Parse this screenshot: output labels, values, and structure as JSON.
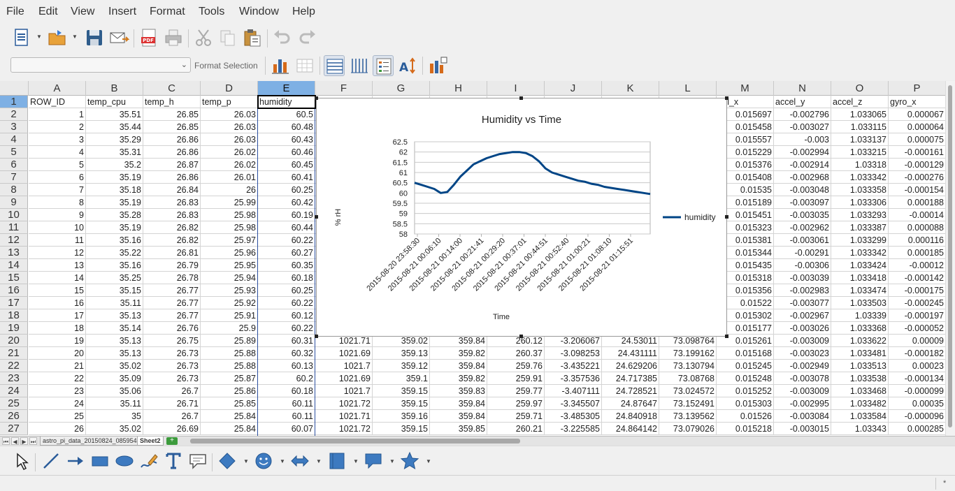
{
  "menu": [
    "File",
    "Edit",
    "View",
    "Insert",
    "Format",
    "Tools",
    "Window",
    "Help"
  ],
  "toolbar2": {
    "format_selection_label": "Format Selection"
  },
  "columns": [
    "A",
    "B",
    "C",
    "D",
    "E",
    "F",
    "G",
    "H",
    "I",
    "J",
    "K",
    "L",
    "M",
    "N",
    "O",
    "P"
  ],
  "selected_column": "E",
  "header_row": [
    "ROW_ID",
    "temp_cpu",
    "temp_h",
    "temp_p",
    "humidity",
    "",
    "",
    "",
    "",
    "",
    "",
    "",
    "cel_x",
    "accel_y",
    "accel_z",
    "gyro_x"
  ],
  "rows": [
    [
      "1",
      "35.51",
      "26.85",
      "26.03",
      "60.5",
      "",
      "",
      "",
      "",
      "",
      "",
      "",
      "0.015697",
      "-0.002796",
      "1.033065",
      "0.000067"
    ],
    [
      "2",
      "35.44",
      "26.85",
      "26.03",
      "60.48",
      "",
      "",
      "",
      "",
      "",
      "",
      "",
      "0.015458",
      "-0.003027",
      "1.033115",
      "0.000064"
    ],
    [
      "3",
      "35.29",
      "26.86",
      "26.03",
      "60.43",
      "",
      "",
      "",
      "",
      "",
      "",
      "",
      "0.015557",
      "-0.003",
      "1.033137",
      "0.000075"
    ],
    [
      "4",
      "35.31",
      "26.86",
      "26.02",
      "60.46",
      "",
      "",
      "",
      "",
      "",
      "",
      "",
      "0.015229",
      "-0.002994",
      "1.033215",
      "-0.000161"
    ],
    [
      "5",
      "35.2",
      "26.87",
      "26.02",
      "60.45",
      "",
      "",
      "",
      "",
      "",
      "",
      "",
      "0.015376",
      "-0.002914",
      "1.03318",
      "-0.000129"
    ],
    [
      "6",
      "35.19",
      "26.86",
      "26.01",
      "60.41",
      "",
      "",
      "",
      "",
      "",
      "",
      "",
      "0.015408",
      "-0.002968",
      "1.033342",
      "-0.000276"
    ],
    [
      "7",
      "35.18",
      "26.84",
      "26",
      "60.25",
      "",
      "",
      "",
      "",
      "",
      "",
      "",
      "0.01535",
      "-0.003048",
      "1.033358",
      "-0.000154"
    ],
    [
      "8",
      "35.19",
      "26.83",
      "25.99",
      "60.42",
      "",
      "",
      "",
      "",
      "",
      "",
      "",
      "0.015189",
      "-0.003097",
      "1.033306",
      "0.000188"
    ],
    [
      "9",
      "35.28",
      "26.83",
      "25.98",
      "60.19",
      "",
      "",
      "",
      "",
      "",
      "",
      "",
      "0.015451",
      "-0.003035",
      "1.033293",
      "-0.00014"
    ],
    [
      "10",
      "35.19",
      "26.82",
      "25.98",
      "60.44",
      "",
      "",
      "",
      "",
      "",
      "",
      "",
      "0.015323",
      "-0.002962",
      "1.033387",
      "0.000088"
    ],
    [
      "11",
      "35.16",
      "26.82",
      "25.97",
      "60.22",
      "",
      "",
      "",
      "",
      "",
      "",
      "",
      "0.015381",
      "-0.003061",
      "1.033299",
      "0.000116"
    ],
    [
      "12",
      "35.22",
      "26.81",
      "25.96",
      "60.27",
      "",
      "",
      "",
      "",
      "",
      "",
      "",
      "0.015344",
      "-0.00291",
      "1.033342",
      "0.000185"
    ],
    [
      "13",
      "35.16",
      "26.79",
      "25.95",
      "60.35",
      "",
      "",
      "",
      "",
      "",
      "",
      "",
      "0.015435",
      "-0.00306",
      "1.033424",
      "-0.00012"
    ],
    [
      "14",
      "35.25",
      "26.78",
      "25.94",
      "60.18",
      "",
      "",
      "",
      "",
      "",
      "",
      "",
      "0.015318",
      "-0.003039",
      "1.033418",
      "-0.000142"
    ],
    [
      "15",
      "35.15",
      "26.77",
      "25.93",
      "60.25",
      "",
      "",
      "",
      "",
      "",
      "",
      "",
      "0.015356",
      "-0.002983",
      "1.033474",
      "-0.000175"
    ],
    [
      "16",
      "35.11",
      "26.77",
      "25.92",
      "60.22",
      "",
      "",
      "",
      "",
      "",
      "",
      "",
      "0.01522",
      "-0.003077",
      "1.033503",
      "-0.000245"
    ],
    [
      "17",
      "35.13",
      "26.77",
      "25.91",
      "60.12",
      "",
      "",
      "",
      "",
      "",
      "",
      "",
      "0.015302",
      "-0.002967",
      "1.03339",
      "-0.000197"
    ],
    [
      "18",
      "35.14",
      "26.76",
      "25.9",
      "60.22",
      "",
      "",
      "",
      "",
      "",
      "",
      "",
      "0.015177",
      "-0.003026",
      "1.033368",
      "-0.000052"
    ],
    [
      "19",
      "35.13",
      "26.75",
      "25.89",
      "60.31",
      "1021.71",
      "359.02",
      "359.84",
      "260.12",
      "-3.206067",
      "24.53011",
      "73.098764",
      "0.015261",
      "-0.003009",
      "1.033622",
      "0.00009"
    ],
    [
      "20",
      "35.13",
      "26.73",
      "25.88",
      "60.32",
      "1021.69",
      "359.13",
      "359.82",
      "260.37",
      "-3.098253",
      "24.431111",
      "73.199162",
      "0.015168",
      "-0.003023",
      "1.033481",
      "-0.000182"
    ],
    [
      "21",
      "35.02",
      "26.73",
      "25.88",
      "60.13",
      "1021.7",
      "359.12",
      "359.84",
      "259.76",
      "-3.435221",
      "24.629206",
      "73.130794",
      "0.015245",
      "-0.002949",
      "1.033513",
      "0.00023"
    ],
    [
      "22",
      "35.09",
      "26.73",
      "25.87",
      "60.2",
      "1021.69",
      "359.1",
      "359.82",
      "259.91",
      "-3.357536",
      "24.717385",
      "73.08768",
      "0.015248",
      "-0.003078",
      "1.033538",
      "-0.000134"
    ],
    [
      "23",
      "35.06",
      "26.7",
      "25.86",
      "60.18",
      "1021.7",
      "359.15",
      "359.83",
      "259.77",
      "-3.407111",
      "24.728521",
      "73.024572",
      "0.015252",
      "-0.003009",
      "1.033468",
      "-0.000099"
    ],
    [
      "24",
      "35.11",
      "26.71",
      "25.85",
      "60.11",
      "1021.72",
      "359.15",
      "359.84",
      "259.97",
      "-3.345507",
      "24.87647",
      "73.152491",
      "0.015303",
      "-0.002995",
      "1.033482",
      "0.00035"
    ],
    [
      "25",
      "35",
      "26.7",
      "25.84",
      "60.11",
      "1021.71",
      "359.16",
      "359.84",
      "259.71",
      "-3.485305",
      "24.840918",
      "73.139562",
      "0.01526",
      "-0.003084",
      "1.033584",
      "-0.000096"
    ],
    [
      "26",
      "35.02",
      "26.69",
      "25.84",
      "60.07",
      "1021.72",
      "359.15",
      "359.85",
      "260.21",
      "-3.225585",
      "24.864142",
      "73.079026",
      "0.015218",
      "-0.003015",
      "1.03343",
      "0.000285"
    ]
  ],
  "sheet_tabs": [
    "astro_pi_data_20150824_085954",
    "Sheet2"
  ],
  "active_sheet": "Sheet2",
  "status_right": "*",
  "chart_data": {
    "type": "line",
    "title": "Humidity vs Time",
    "xlabel": "Time",
    "ylabel": "% rH",
    "ylim": [
      58,
      62.5
    ],
    "yticks": [
      "62.5",
      "62",
      "61.5",
      "61",
      "60.5",
      "60",
      "59.5",
      "59",
      "58.5",
      "58"
    ],
    "xticks": [
      "2015-08-20 23:58:30",
      "2015-08-21 00:06:10",
      "2015-08-21 00:14:00",
      "2015-08-21 00:21:41",
      "2015-08-21 00:29:20",
      "2015-08-21 00:37:01",
      "2015-08-21 00:44:51",
      "2015-08-21 00:52:40",
      "2015-08-21 01:00:21",
      "2015-08-21 01:08:10",
      "2015-08-21 01:15:51"
    ],
    "legend": "right",
    "series": [
      {
        "name": "humidity",
        "color": "#004586",
        "values": [
          60.5,
          60.4,
          60.3,
          60.2,
          60.0,
          60.05,
          60.4,
          60.8,
          61.1,
          61.4,
          61.55,
          61.7,
          61.8,
          61.9,
          61.95,
          62.0,
          62.0,
          61.95,
          61.8,
          61.55,
          61.2,
          61.0,
          60.9,
          60.8,
          60.7,
          60.6,
          60.55,
          60.45,
          60.4,
          60.3,
          60.25,
          60.2,
          60.15,
          60.1,
          60.05,
          60.0,
          59.95
        ]
      }
    ]
  }
}
